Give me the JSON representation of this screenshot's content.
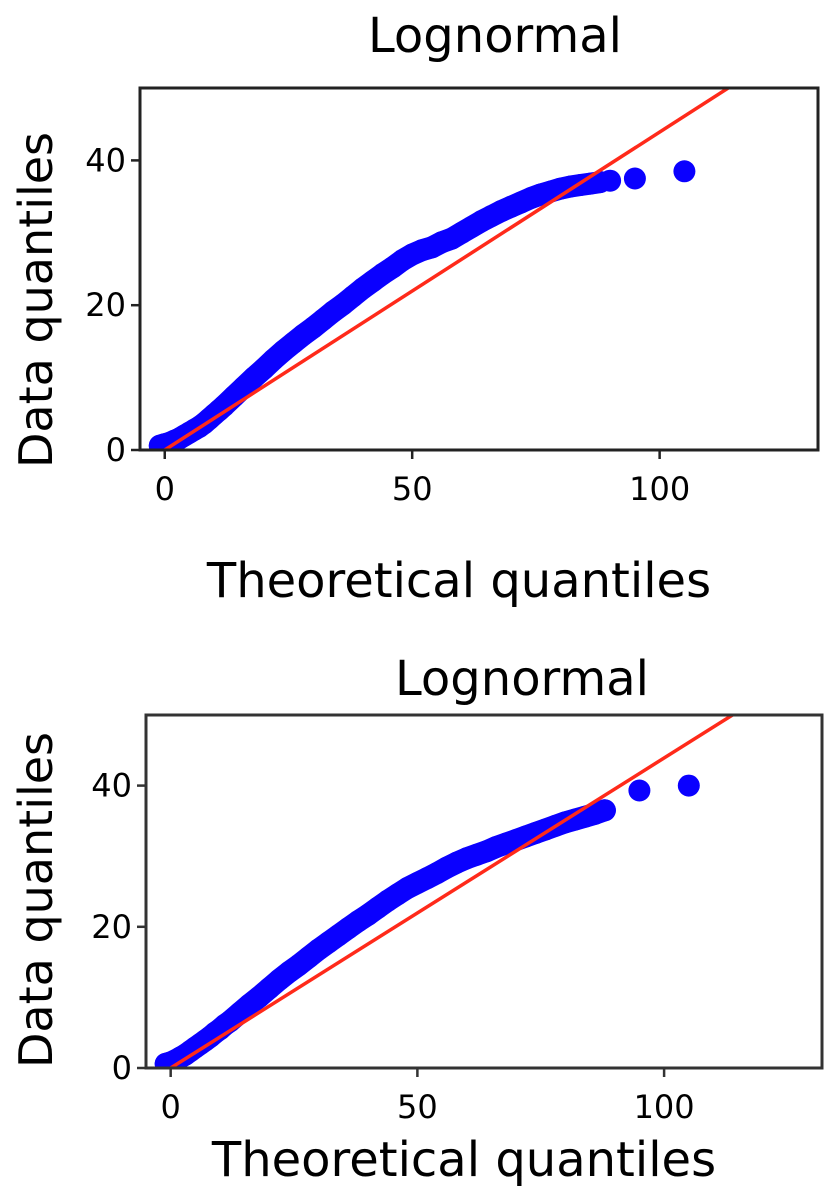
{
  "chart_data": [
    {
      "type": "scatter",
      "title": "Lognormal",
      "xlabel": "Theoretical quantiles",
      "ylabel": "Data quantiles",
      "xlim": [
        -5,
        132
      ],
      "ylim": [
        0,
        50
      ],
      "xticks": [
        0,
        50,
        100
      ],
      "yticks": [
        0,
        20,
        40
      ],
      "grid": false,
      "legend": "none",
      "colors": {
        "points": "#0a00ff",
        "line": "#ff2a1a",
        "axes": "#222222"
      },
      "series": [
        {
          "kind": "points",
          "x": [
            -1,
            0,
            1,
            2,
            3,
            4,
            5,
            6,
            7,
            8,
            9,
            10,
            11,
            12,
            14,
            16,
            18,
            20,
            22,
            24,
            26,
            28,
            30,
            32,
            34,
            36,
            38,
            40,
            42,
            44,
            46,
            48,
            50,
            52,
            54,
            56,
            58,
            60,
            62,
            64,
            66,
            68,
            70,
            72,
            74,
            76,
            78,
            80,
            82,
            84,
            86,
            88,
            90,
            95,
            105
          ],
          "y": [
            0.6,
            0.8,
            1.0,
            1.3,
            1.6,
            2.0,
            2.4,
            2.8,
            3.2,
            3.7,
            4.3,
            4.9,
            5.5,
            6.1,
            7.4,
            8.7,
            10.0,
            11.2,
            12.5,
            13.7,
            14.8,
            15.9,
            16.9,
            18.0,
            19.1,
            20.1,
            21.2,
            22.3,
            23.3,
            24.3,
            25.2,
            26.2,
            27.0,
            27.6,
            28.0,
            28.7,
            29.2,
            30.0,
            30.8,
            31.6,
            32.3,
            33.0,
            33.6,
            34.2,
            34.8,
            35.3,
            35.7,
            36.1,
            36.4,
            36.6,
            36.8,
            37.0,
            37.2,
            37.5,
            38.5
          ]
        },
        {
          "kind": "reference-line",
          "x": [
            0,
            115
          ],
          "y": [
            0,
            50.5
          ]
        }
      ]
    },
    {
      "type": "scatter",
      "title": "Lognormal",
      "xlabel": "Theoretical quantiles",
      "ylabel": "Data quantiles",
      "xlim": [
        -5,
        132
      ],
      "ylim": [
        0,
        50
      ],
      "xticks": [
        0,
        50,
        100
      ],
      "yticks": [
        0,
        20,
        40
      ],
      "grid": false,
      "legend": "none",
      "colors": {
        "points": "#0a00ff",
        "line": "#ff2a1a",
        "axes": "#333333"
      },
      "series": [
        {
          "kind": "points",
          "x": [
            -1,
            0,
            1,
            2,
            3,
            4,
            5,
            6,
            7,
            8,
            9,
            10,
            11,
            12,
            14,
            16,
            18,
            20,
            22,
            24,
            26,
            28,
            30,
            32,
            34,
            36,
            38,
            40,
            42,
            44,
            46,
            48,
            50,
            52,
            54,
            56,
            58,
            60,
            62,
            64,
            66,
            68,
            70,
            72,
            74,
            76,
            78,
            80,
            82,
            84,
            86,
            88,
            95,
            105
          ],
          "y": [
            0.6,
            0.8,
            1.1,
            1.5,
            1.9,
            2.4,
            2.9,
            3.4,
            3.9,
            4.4,
            5.0,
            5.5,
            6.1,
            6.6,
            7.8,
            9.0,
            10.1,
            11.3,
            12.5,
            13.6,
            14.6,
            15.7,
            16.8,
            17.8,
            18.8,
            19.8,
            20.8,
            21.7,
            22.7,
            23.7,
            24.6,
            25.5,
            26.2,
            26.9,
            27.6,
            28.4,
            29.1,
            29.7,
            30.2,
            30.7,
            31.3,
            31.8,
            32.3,
            32.8,
            33.3,
            33.8,
            34.3,
            34.8,
            35.2,
            35.6,
            36.0,
            36.5,
            39.3,
            40.0
          ]
        },
        {
          "kind": "reference-line",
          "x": [
            0,
            115
          ],
          "y": [
            0,
            50.5
          ]
        }
      ]
    }
  ]
}
